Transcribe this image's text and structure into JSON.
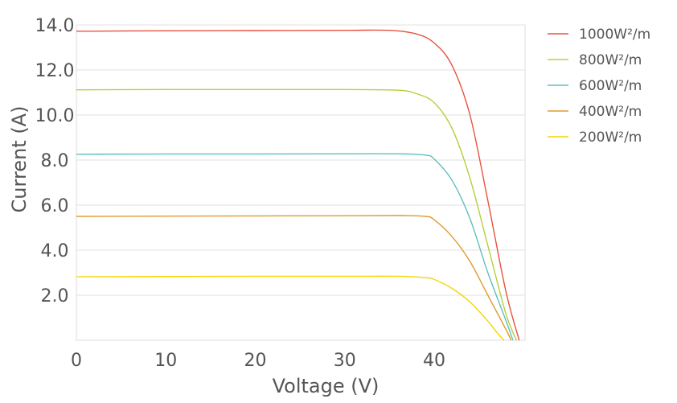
{
  "chart_data": {
    "type": "line",
    "xlabel": "Voltage (V)",
    "ylabel": "Current (A)",
    "xlim": [
      0,
      50
    ],
    "ylim": [
      0,
      14
    ],
    "x_ticks": [
      "0",
      "10",
      "20",
      "30",
      "40"
    ],
    "x_tick_values": [
      0,
      10,
      20,
      30,
      40
    ],
    "y_ticks": [
      "2.0",
      "4.0",
      "6.0",
      "8.0",
      "10.0",
      "12.0",
      "14.0"
    ],
    "y_tick_values": [
      2,
      4,
      6,
      8,
      10,
      12,
      14
    ],
    "grid": "horizontal",
    "legend_position": "top-right",
    "series": [
      {
        "name": "1000W²/m",
        "color": "#e8523f",
        "x": [
          0,
          10,
          20,
          30,
          35,
          38,
          40,
          42,
          44,
          46,
          48,
          49.5
        ],
        "y": [
          13.72,
          13.74,
          13.75,
          13.76,
          13.76,
          13.6,
          13.2,
          12.2,
          10.0,
          6.2,
          2.2,
          0
        ]
      },
      {
        "name": "800W²/m",
        "color": "#b5cf3b",
        "x": [
          0,
          10,
          20,
          30,
          36,
          38,
          40,
          42,
          44,
          46,
          48,
          49.2
        ],
        "y": [
          11.12,
          11.13,
          11.13,
          11.13,
          11.1,
          10.95,
          10.55,
          9.4,
          7.2,
          4.2,
          1.2,
          0
        ]
      },
      {
        "name": "600W²/m",
        "color": "#5fbfbf",
        "x": [
          0,
          10,
          20,
          30,
          36,
          39,
          40,
          42,
          44,
          46,
          48,
          48.8
        ],
        "y": [
          8.26,
          8.27,
          8.27,
          8.28,
          8.28,
          8.22,
          8.05,
          7.1,
          5.4,
          3.0,
          0.9,
          0
        ]
      },
      {
        "name": "400W²/m",
        "color": "#e09a30",
        "x": [
          0,
          10,
          20,
          30,
          36,
          39,
          40,
          42,
          44,
          46,
          48,
          48.6
        ],
        "y": [
          5.5,
          5.51,
          5.52,
          5.53,
          5.54,
          5.5,
          5.35,
          4.6,
          3.5,
          2.0,
          0.5,
          0
        ]
      },
      {
        "name": "200W²/m",
        "color": "#f2d600",
        "x": [
          0,
          10,
          20,
          30,
          36,
          39,
          40,
          42,
          44,
          46,
          47,
          47.8
        ],
        "y": [
          2.82,
          2.83,
          2.84,
          2.84,
          2.84,
          2.78,
          2.7,
          2.3,
          1.7,
          0.85,
          0.35,
          0
        ]
      }
    ]
  }
}
